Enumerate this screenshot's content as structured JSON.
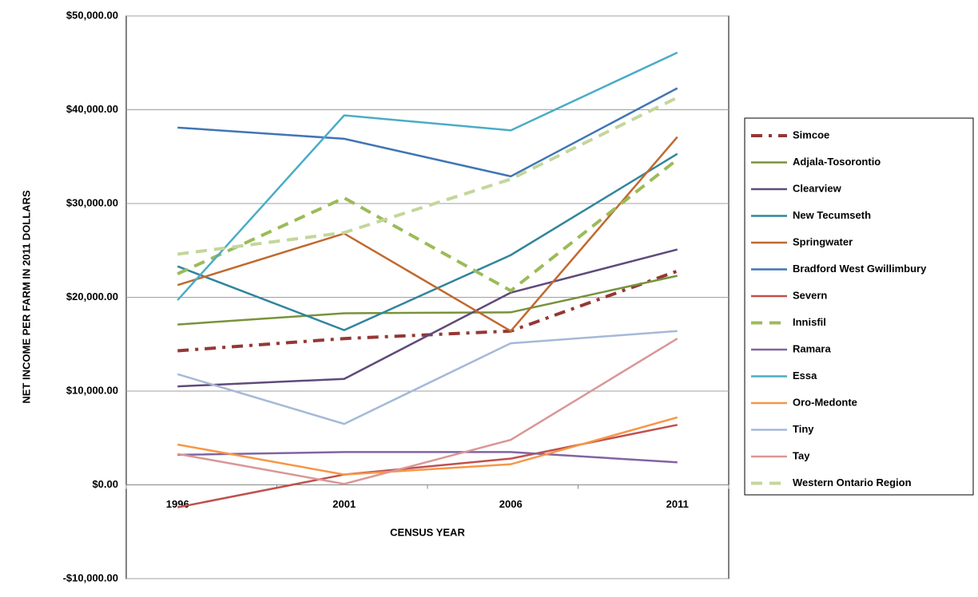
{
  "chart_data": {
    "type": "line",
    "x_label": "CENSUS YEAR",
    "y_label": "NET INCOME PER FARM IN 2011 DOLLARS",
    "categories": [
      "1996",
      "2001",
      "2006",
      "2011"
    ],
    "ylim": [
      -10000,
      50000
    ],
    "yticks": [
      {
        "value": -10000,
        "label": "-$10,000.00"
      },
      {
        "value": 0,
        "label": "$0.00"
      },
      {
        "value": 10000,
        "label": "$10,000.00"
      },
      {
        "value": 20000,
        "label": "$20,000.00"
      },
      {
        "value": 30000,
        "label": "$30,000.00"
      },
      {
        "value": 40000,
        "label": "$40,000.00"
      },
      {
        "value": 50000,
        "label": "$50,000.00"
      }
    ],
    "grid": true,
    "legend": "right",
    "series": [
      {
        "name": "Simcoe",
        "color": "#953735",
        "dash": "dashdot",
        "values": [
          14300,
          15600,
          16400,
          22800
        ]
      },
      {
        "name": "Adjala-Tosorontio",
        "color": "#77933c",
        "values": [
          17100,
          18300,
          18400,
          22300
        ]
      },
      {
        "name": "Clearview",
        "color": "#604a7b",
        "values": [
          10500,
          11300,
          20500,
          25100
        ]
      },
      {
        "name": "New Tecumseth",
        "color": "#31859c",
        "values": [
          23300,
          16500,
          24500,
          35300
        ]
      },
      {
        "name": "Springwater",
        "color": "#c0692f",
        "values": [
          21300,
          26800,
          16400,
          37100
        ]
      },
      {
        "name": "Bradford West Gwillimbury",
        "color": "#4075b5",
        "values": [
          38100,
          36900,
          32900,
          42300
        ]
      },
      {
        "name": "Severn",
        "color": "#c0504d",
        "values": [
          -2400,
          1100,
          2800,
          6400
        ]
      },
      {
        "name": "Innisfil",
        "color": "#9bbb59",
        "dash": "dash",
        "values": [
          22500,
          30600,
          20700,
          34700
        ]
      },
      {
        "name": "Ramara",
        "color": "#8064a2",
        "values": [
          3200,
          3500,
          3500,
          2400
        ]
      },
      {
        "name": "Essa",
        "color": "#4bacc6",
        "values": [
          19700,
          39400,
          37800,
          46100
        ]
      },
      {
        "name": "Oro-Medonte",
        "color": "#f79646",
        "values": [
          4300,
          1100,
          2200,
          7200
        ]
      },
      {
        "name": "Tiny",
        "color": "#a5b9d8",
        "values": [
          11800,
          6500,
          15100,
          16400
        ]
      },
      {
        "name": "Tay",
        "color": "#d99795",
        "values": [
          3300,
          100,
          4800,
          15600
        ]
      },
      {
        "name": "Western Ontario Region",
        "color": "#c3d69b",
        "dash": "dash",
        "values": [
          24600,
          26900,
          32600,
          41300
        ]
      }
    ]
  }
}
